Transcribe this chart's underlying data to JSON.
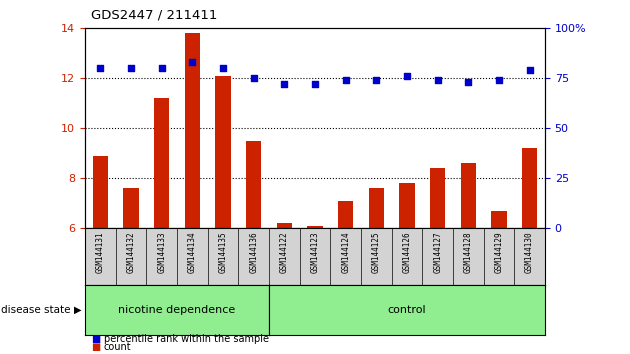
{
  "title": "GDS2447 / 211411",
  "samples": [
    "GSM144131",
    "GSM144132",
    "GSM144133",
    "GSM144134",
    "GSM144135",
    "GSM144136",
    "GSM144122",
    "GSM144123",
    "GSM144124",
    "GSM144125",
    "GSM144126",
    "GSM144127",
    "GSM144128",
    "GSM144129",
    "GSM144130"
  ],
  "count_values": [
    8.9,
    7.6,
    11.2,
    13.8,
    12.1,
    9.5,
    6.2,
    6.1,
    7.1,
    7.6,
    7.8,
    8.4,
    8.6,
    6.7,
    9.2
  ],
  "percentile_values": [
    80,
    80,
    80,
    83,
    80,
    75,
    72,
    72,
    74,
    74,
    76,
    74,
    73,
    74,
    79
  ],
  "ylim_left": [
    6,
    14
  ],
  "ylim_right": [
    0,
    100
  ],
  "yticks_left": [
    6,
    8,
    10,
    12,
    14
  ],
  "yticks_right": [
    0,
    25,
    50,
    75,
    100
  ],
  "bar_color": "#cc2200",
  "dot_color": "#0000cc",
  "group1_label": "nicotine dependence",
  "group2_label": "control",
  "group1_count": 6,
  "group2_count": 9,
  "legend_count_label": "count",
  "legend_percentile_label": "percentile rank within the sample",
  "disease_state_label": "disease state",
  "group_bg_color": "#90ee90",
  "tick_bg_color": "#d3d3d3",
  "dotted_line_yticks": [
    8,
    10,
    12
  ],
  "bar_width": 0.5,
  "fig_width": 6.3,
  "fig_height": 3.54,
  "dpi": 100
}
